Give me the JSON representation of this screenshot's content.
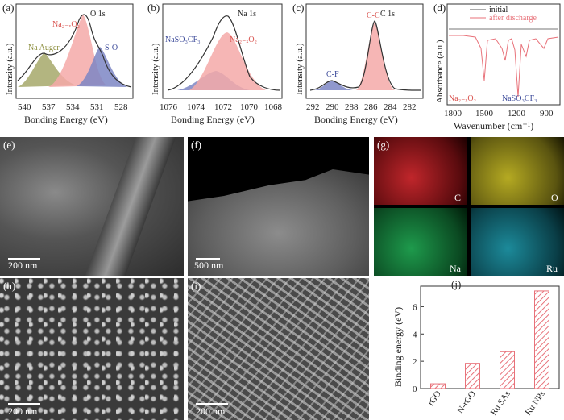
{
  "panels": {
    "a": {
      "letter": "(a)",
      "tag": "O 1s",
      "xlabel": "Bonding Energy (eV)",
      "ylabel": "Intensity (a.u.)",
      "ticks": [
        "540",
        "537",
        "534",
        "531",
        "528"
      ],
      "peaks": {
        "na_auger": "Na Auger",
        "na2xo2": "Na₂₋ₓO₂",
        "so": "S-O"
      }
    },
    "b": {
      "letter": "(b)",
      "tag": "Na 1s",
      "xlabel": "Bonding Energy (eV)",
      "ylabel": "Intensity (a.u.)",
      "ticks": [
        "1076",
        "1074",
        "1072",
        "1070",
        "1068"
      ],
      "peaks": {
        "naso3cf3": "NaSO₃CF₃",
        "na2xo2": "Na₂₋ₓO₂"
      }
    },
    "c": {
      "letter": "(c)",
      "tag": "C 1s",
      "xlabel": "Bonding Energy (eV)",
      "ylabel": "Intensity (a.u.)",
      "ticks": [
        "292",
        "290",
        "288",
        "286",
        "284",
        "282"
      ],
      "peaks": {
        "cc": "C-C",
        "cf": "C-F"
      }
    },
    "d": {
      "letter": "(d)",
      "xlabel": "Wavenumber (cm⁻¹)",
      "ylabel": "Absorbance (a.u.)",
      "ticks": [
        "1800",
        "1500",
        "1200",
        "900"
      ],
      "legend": [
        "initial",
        "after discharge"
      ],
      "annotations": {
        "na2xo2": "Na₂₋ₓO₂",
        "naso3cf3": "NaSO₃CF₃"
      }
    },
    "e": {
      "letter": "(e)",
      "scale": "200 nm"
    },
    "f": {
      "letter": "(f)",
      "scale": "500 nm"
    },
    "g": {
      "letter": "(g)",
      "elements": [
        "C",
        "O",
        "Na",
        "Ru"
      ]
    },
    "h": {
      "letter": "(h)",
      "scale": "200 nm"
    },
    "i": {
      "letter": "(i)",
      "scale": "200 nm"
    },
    "j": {
      "letter": "(j)"
    }
  },
  "chart_data": [
    {
      "type": "bar",
      "panel": "j",
      "categories": [
        "rGO",
        "N-rGO",
        "Ru SAs",
        "Ru NPs"
      ],
      "values": [
        0.35,
        1.85,
        2.7,
        7.15
      ],
      "title": "",
      "xlabel": "",
      "ylabel": "Binding energy (eV)",
      "ylim": [
        0,
        7.5
      ],
      "yticks": [
        "0",
        "2",
        "4",
        "6"
      ],
      "bar_color": "#e8727a"
    }
  ]
}
